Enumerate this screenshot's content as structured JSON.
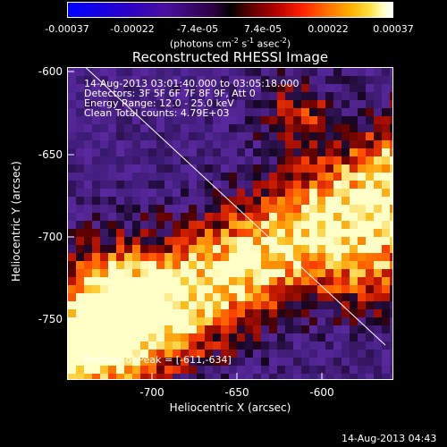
{
  "colorbar": {
    "tick_labels": [
      "-0.00037",
      "-0.00022",
      "-7.4e-05",
      "7.4e-05",
      "0.00022",
      "0.00037"
    ],
    "units_text": "(photons cm",
    "units_exp1": "-2",
    "units_mid": " s",
    "units_exp2": "-1",
    "units_mid2": " asec",
    "units_exp3": "-2",
    "units_end": ")"
  },
  "plot": {
    "title": "Reconstructed RHESSI Image",
    "xlabel": "Heliocentric X (arcsec)",
    "ylabel": "Heliocentric Y (arcsec)",
    "xticks": [
      "-700",
      "-650",
      "-600"
    ],
    "yticks": [
      "-600",
      "-650",
      "-700",
      "-750"
    ],
    "annotations": {
      "time": "14-Aug-2013 03:01:40.000 to 03:05:18.000",
      "detectors": "Detectors: 3F 5F 6F 7F 8F 9F, Att 0",
      "energy": "Energy Range: 12.0 - 25.0 keV",
      "method": "Clean    Total counts: 4.79E+03",
      "peak": "Position of Peak = [-611,-634]"
    }
  },
  "footer": {
    "timestamp": "14-Aug-2013 04:43"
  }
}
